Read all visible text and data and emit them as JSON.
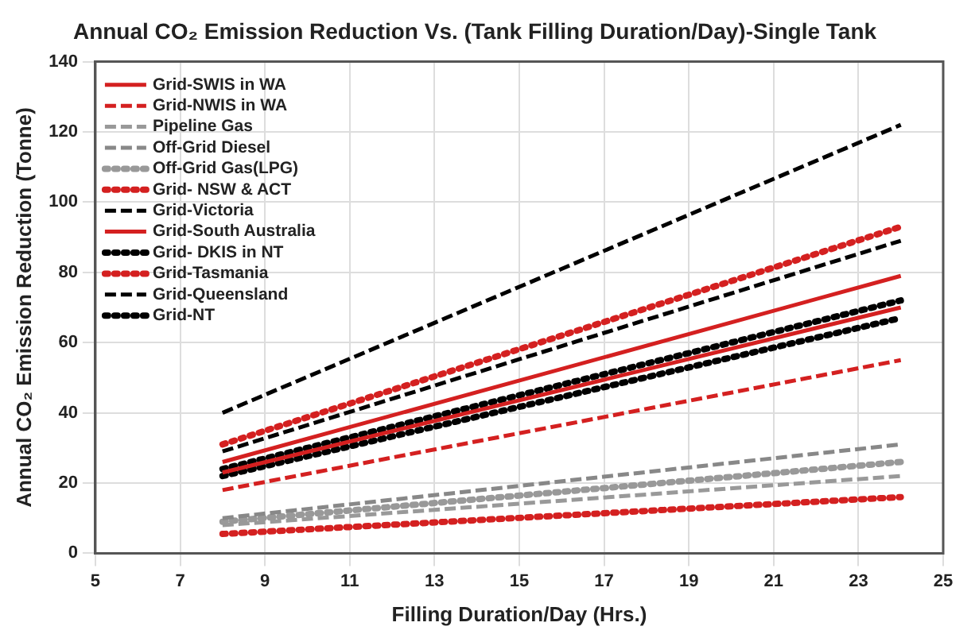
{
  "chart_data": {
    "type": "line",
    "title": "Annual CO₂ Emission Reduction Vs. (Tank Filling Duration/Day)-Single Tank",
    "xlabel": "Filling Duration/Day (Hrs.)",
    "ylabel": "Annual CO₂ Emission Reduction (Tonne)",
    "x": [
      8,
      24
    ],
    "xlim": [
      5,
      25
    ],
    "xticks": [
      5,
      7,
      9,
      11,
      13,
      15,
      17,
      19,
      21,
      23,
      25
    ],
    "ylim": [
      0,
      140
    ],
    "yticks": [
      0,
      20,
      40,
      60,
      80,
      100,
      120,
      140
    ],
    "grid": true,
    "legend": "top left",
    "marker": "none",
    "series": [
      {
        "name": "Grid-SWIS in WA",
        "color": "#d42020",
        "line_style": "solid",
        "values": [
          23,
          70
        ]
      },
      {
        "name": "Grid-NWIS in WA",
        "color": "#d42020",
        "line_style": "dashed",
        "values": [
          18,
          55
        ]
      },
      {
        "name": "Pipeline Gas",
        "color": "#999999",
        "line_style": "dashed",
        "values": [
          8,
          22
        ]
      },
      {
        "name": "Off-Grid Diesel",
        "color": "#888888",
        "line_style": "dashed",
        "values": [
          10,
          31
        ]
      },
      {
        "name": "Off-Grid Gas(LPG)",
        "color": "#999999",
        "line_style": "dotted",
        "values": [
          9,
          26
        ]
      },
      {
        "name": "Grid- NSW & ACT",
        "color": "#d42020",
        "line_style": "dotted",
        "values": [
          31,
          93
        ]
      },
      {
        "name": "Grid-Victoria",
        "color": "#000000",
        "line_style": "dashed",
        "values": [
          40,
          122
        ]
      },
      {
        "name": "Grid-South Australia",
        "color": "#d42020",
        "line_style": "solid",
        "values": [
          26,
          79
        ]
      },
      {
        "name": "Grid- DKIS in NT",
        "color": "#000000",
        "line_style": "dotted",
        "values": [
          22,
          67
        ]
      },
      {
        "name": "Grid-Tasmania",
        "color": "#d42020",
        "line_style": "dotted",
        "values": [
          5.5,
          16
        ]
      },
      {
        "name": "Grid-Queensland",
        "color": "#000000",
        "line_style": "dashed",
        "values": [
          29,
          89
        ]
      },
      {
        "name": "Grid-NT",
        "color": "#000000",
        "line_style": "dotted",
        "values": [
          24,
          72
        ]
      }
    ]
  }
}
